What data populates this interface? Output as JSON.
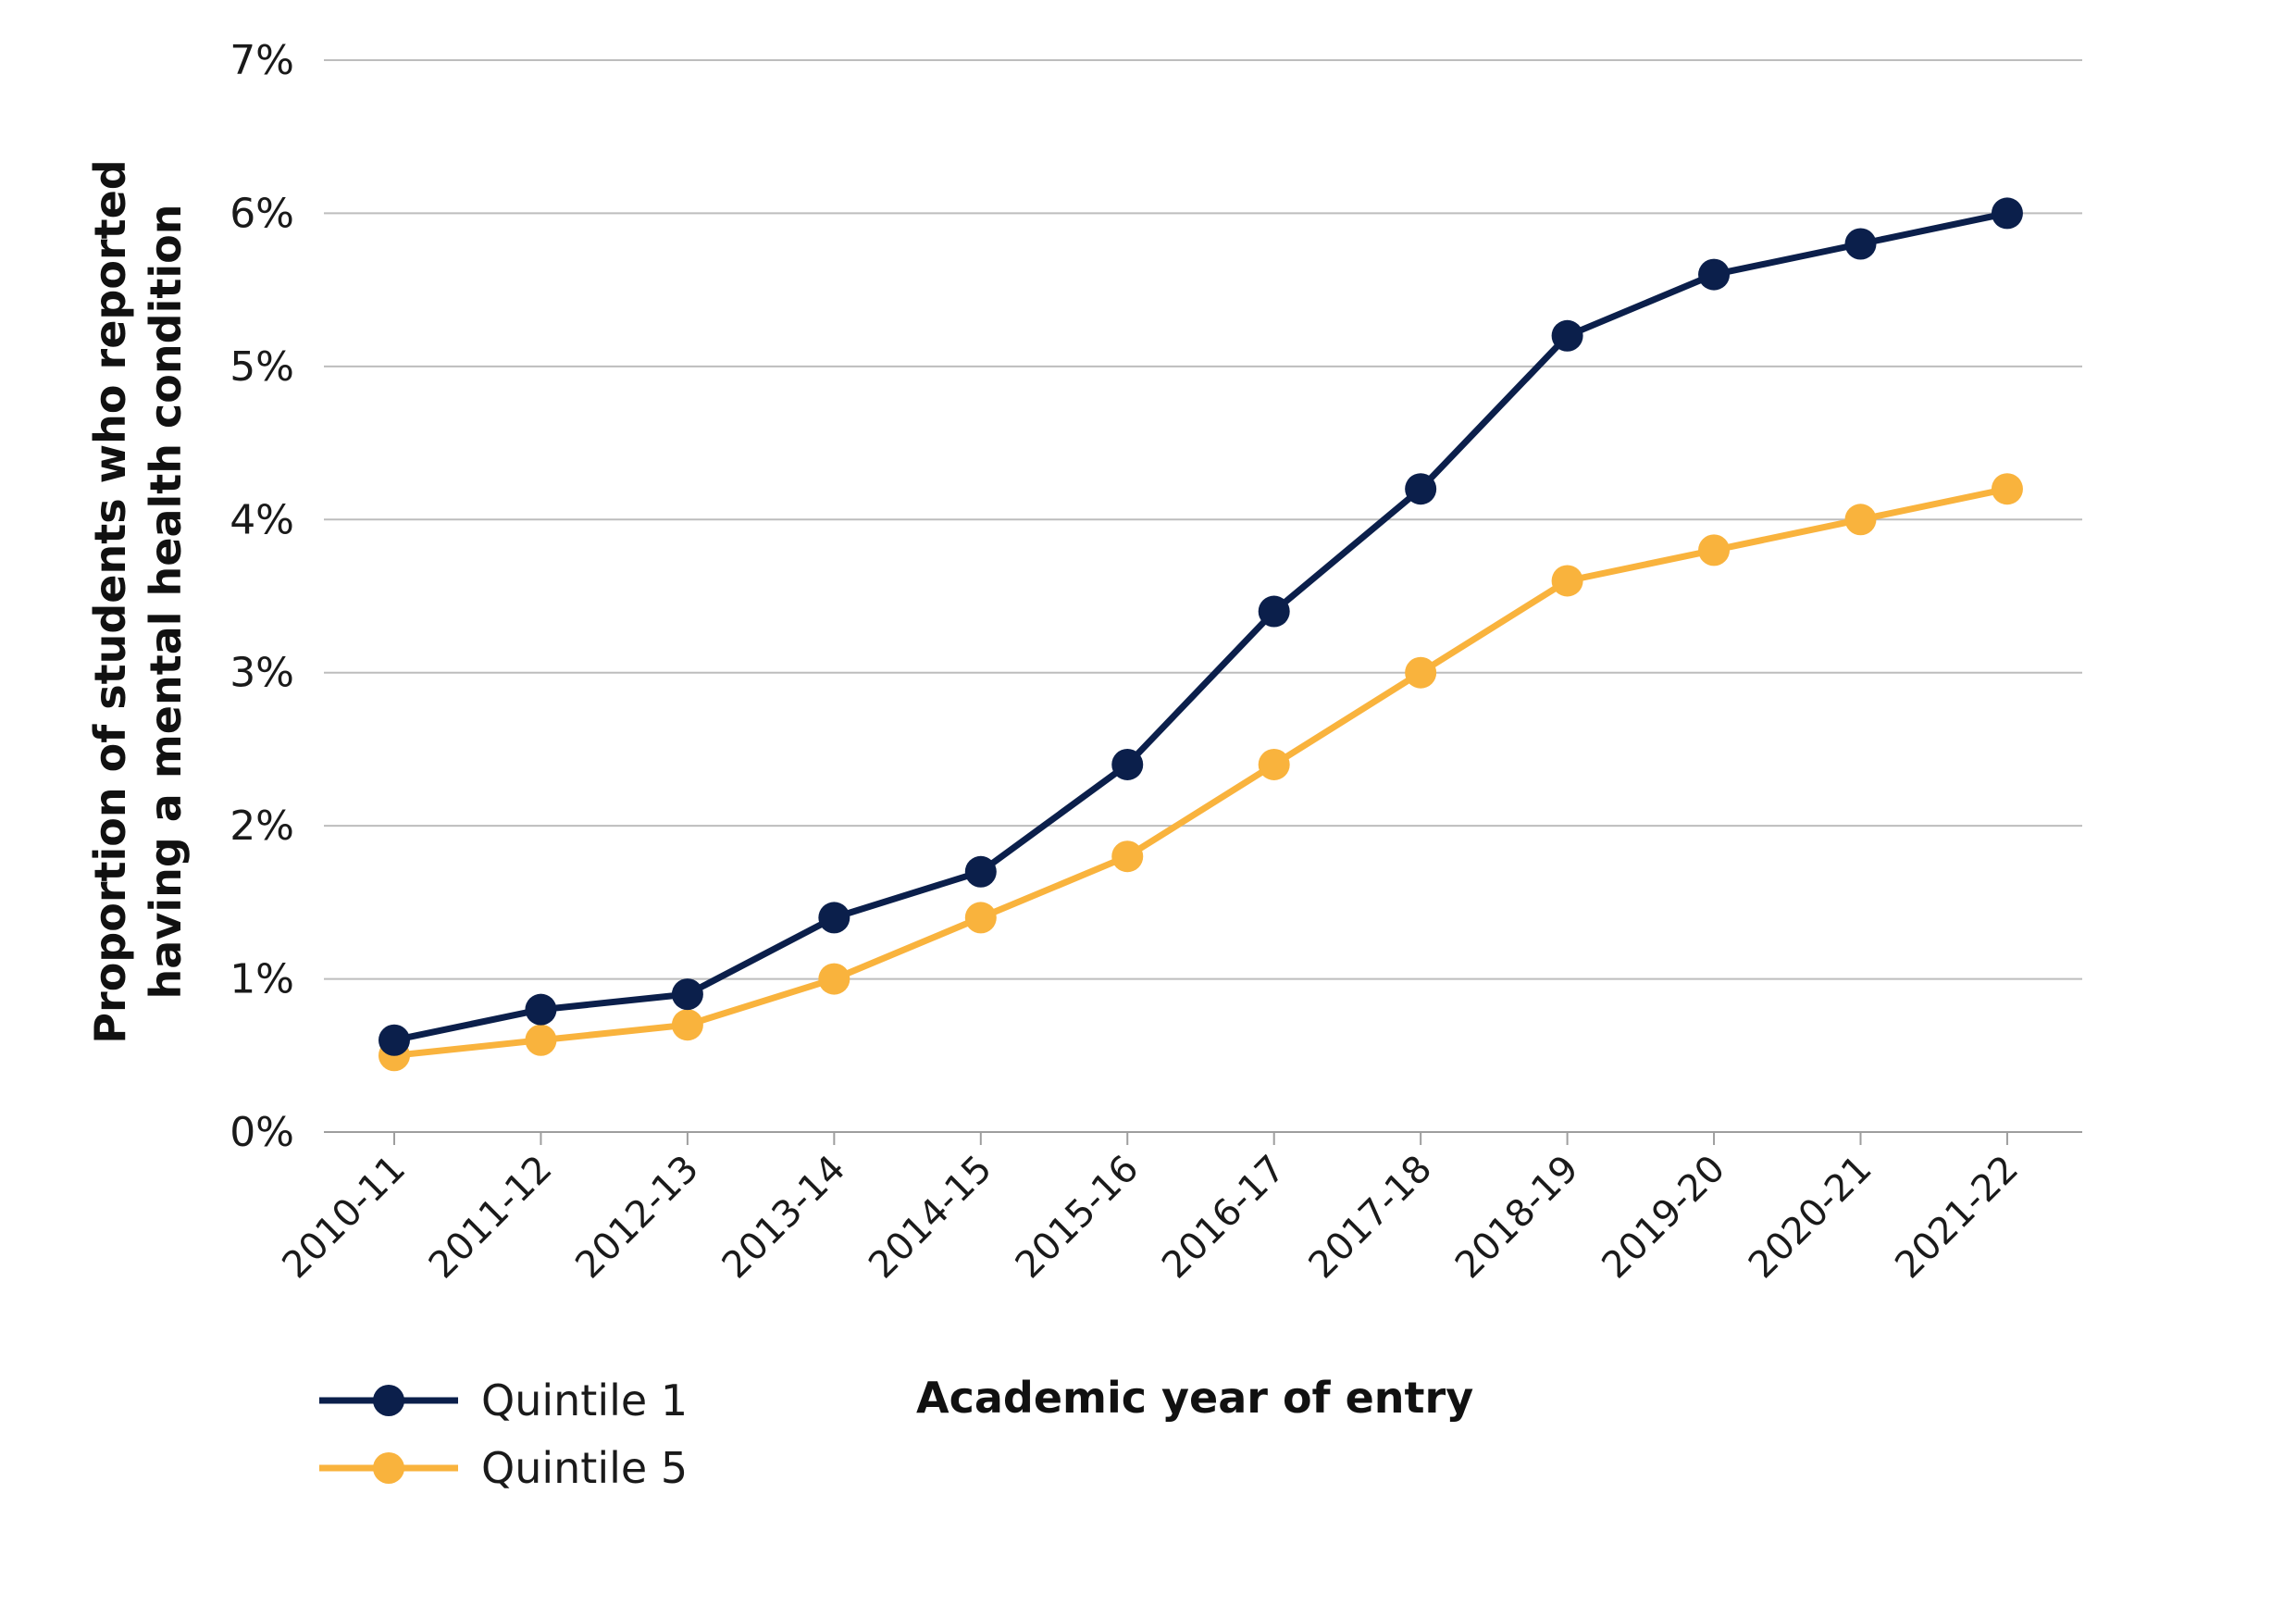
{
  "chart_data": {
    "type": "line",
    "x": [
      "2010-11",
      "2011-12",
      "2012-13",
      "2013-14",
      "2014-15",
      "2015-16",
      "2016-17",
      "2017-18",
      "2018-19",
      "2019-20",
      "2020-21",
      "2021-22"
    ],
    "series": [
      {
        "name": "Quintile 1",
        "color": "#0b1f4b",
        "values": [
          0.6,
          0.8,
          0.9,
          1.4,
          1.7,
          2.4,
          3.4,
          4.2,
          5.2,
          5.6,
          5.8,
          6.0
        ]
      },
      {
        "name": "Quintile 5",
        "color": "#f9b33d",
        "values": [
          0.5,
          0.6,
          0.7,
          1.0,
          1.4,
          1.8,
          2.4,
          3.0,
          3.6,
          3.8,
          4.0,
          4.2
        ]
      }
    ],
    "title": "",
    "xlabel": "Academic year of entry",
    "ylabel_lines": [
      "Proportion of students who reported",
      "having a mental health condition"
    ],
    "ylim": [
      0,
      7
    ],
    "yticks": [
      0,
      1,
      2,
      3,
      4,
      5,
      6,
      7
    ],
    "ytick_labels": [
      "0%",
      "1%",
      "2%",
      "3%",
      "4%",
      "5%",
      "6%",
      "7%"
    ],
    "grid": true,
    "legend_position": "bottom-left"
  }
}
